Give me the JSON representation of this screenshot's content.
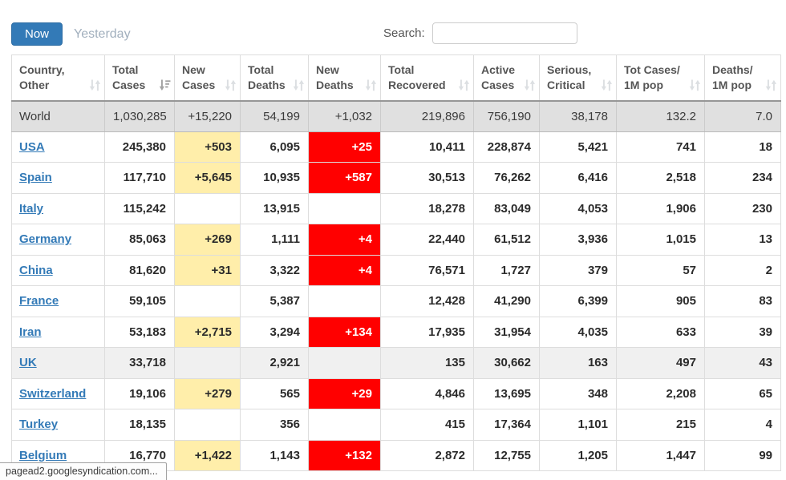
{
  "toolbar": {
    "now_label": "Now",
    "yesterday_label": "Yesterday",
    "search_label": "Search:",
    "search_value": ""
  },
  "statusbar": {
    "text": "pagead2.googlesyndication.com..."
  },
  "colors": {
    "accent_blue": "#337ab7",
    "link_blue": "#337ab7",
    "highlight_yellow": "#FFEEAA",
    "highlight_red": "#FF0000",
    "total_row_bg": "#E0E0E0",
    "shaded_row_bg": "#F0F0F0"
  },
  "table": {
    "columns": [
      {
        "id": "country",
        "label": "Country,\nOther",
        "sort": "unsorted"
      },
      {
        "id": "total_cases",
        "label": "Total\nCases",
        "sort": "desc"
      },
      {
        "id": "new_cases",
        "label": "New\nCases",
        "sort": "unsorted"
      },
      {
        "id": "total_deaths",
        "label": "Total\nDeaths",
        "sort": "unsorted"
      },
      {
        "id": "new_deaths",
        "label": "New\nDeaths",
        "sort": "unsorted"
      },
      {
        "id": "total_recovered",
        "label": "Total\nRecovered",
        "sort": "unsorted"
      },
      {
        "id": "active_cases",
        "label": "Active\nCases",
        "sort": "unsorted"
      },
      {
        "id": "serious_critical",
        "label": "Serious,\nCritical",
        "sort": "unsorted"
      },
      {
        "id": "cases_per_1m",
        "label": "Tot Cases/\n1M pop",
        "sort": "unsorted"
      },
      {
        "id": "deaths_per_1m",
        "label": "Deaths/\n1M pop",
        "sort": "unsorted"
      }
    ],
    "rows": [
      {
        "country": "World",
        "is_total": true,
        "link": false,
        "cells": [
          "1,030,285",
          "+15,220",
          "54,199",
          "+1,032",
          "219,896",
          "756,190",
          "38,178",
          "132.2",
          "7.0"
        ]
      },
      {
        "country": "USA",
        "link": true,
        "cells": [
          "245,380",
          "+503",
          "6,095",
          "+25",
          "10,411",
          "228,874",
          "5,421",
          "741",
          "18"
        ]
      },
      {
        "country": "Spain",
        "link": true,
        "cells": [
          "117,710",
          "+5,645",
          "10,935",
          "+587",
          "30,513",
          "76,262",
          "6,416",
          "2,518",
          "234"
        ]
      },
      {
        "country": "Italy",
        "link": true,
        "cells": [
          "115,242",
          "",
          "13,915",
          "",
          "18,278",
          "83,049",
          "4,053",
          "1,906",
          "230"
        ]
      },
      {
        "country": "Germany",
        "link": true,
        "cells": [
          "85,063",
          "+269",
          "1,111",
          "+4",
          "22,440",
          "61,512",
          "3,936",
          "1,015",
          "13"
        ]
      },
      {
        "country": "China",
        "link": true,
        "cells": [
          "81,620",
          "+31",
          "3,322",
          "+4",
          "76,571",
          "1,727",
          "379",
          "57",
          "2"
        ]
      },
      {
        "country": "France",
        "link": true,
        "cells": [
          "59,105",
          "",
          "5,387",
          "",
          "12,428",
          "41,290",
          "6,399",
          "905",
          "83"
        ]
      },
      {
        "country": "Iran",
        "link": true,
        "cells": [
          "53,183",
          "+2,715",
          "3,294",
          "+134",
          "17,935",
          "31,954",
          "4,035",
          "633",
          "39"
        ]
      },
      {
        "country": "UK",
        "link": true,
        "shaded": true,
        "cells": [
          "33,718",
          "",
          "2,921",
          "",
          "135",
          "30,662",
          "163",
          "497",
          "43"
        ]
      },
      {
        "country": "Switzerland",
        "link": true,
        "cells": [
          "19,106",
          "+279",
          "565",
          "+29",
          "4,846",
          "13,695",
          "348",
          "2,208",
          "65"
        ]
      },
      {
        "country": "Turkey",
        "link": true,
        "cells": [
          "18,135",
          "",
          "356",
          "",
          "415",
          "17,364",
          "1,101",
          "215",
          "4"
        ]
      },
      {
        "country": "Belgium",
        "link": true,
        "cells": [
          "16,770",
          "+1,422",
          "1,143",
          "+132",
          "2,872",
          "12,755",
          "1,205",
          "1,447",
          "99"
        ]
      }
    ]
  }
}
